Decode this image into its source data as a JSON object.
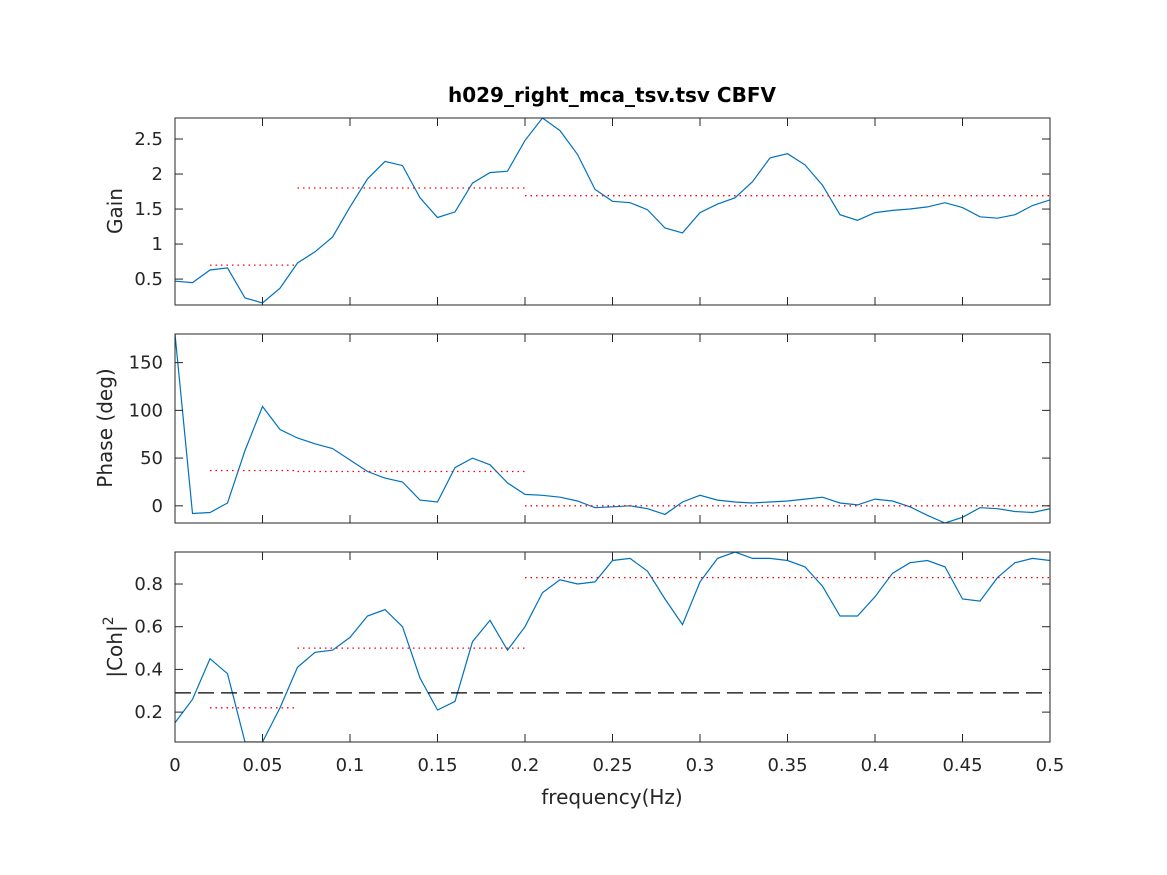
{
  "figure": {
    "title": "h029_right_mca_tsv.tsv CBFV",
    "xlabel": "frequency(Hz)"
  },
  "colors": {
    "line": "#0072BD",
    "band_mean": "#FF0000",
    "threshold": "#000000",
    "axes": "#262626"
  },
  "chart_data": [
    {
      "type": "line",
      "title": "h029_right_mca_tsv.tsv CBFV",
      "xlabel": "",
      "ylabel": "Gain",
      "xlim": [
        0,
        0.5
      ],
      "ylim": [
        0.13,
        2.8
      ],
      "xticks": [
        0,
        0.05,
        0.1,
        0.15,
        0.2,
        0.25,
        0.3,
        0.35,
        0.4,
        0.45,
        0.5
      ],
      "yticks": [
        0.5,
        1,
        1.5,
        2,
        2.5
      ],
      "ytick_labels": [
        "0.5",
        "1",
        "1.5",
        "2",
        "2.5"
      ],
      "grid": false,
      "series": [
        {
          "style": "solid",
          "x": [
            0,
            0.01,
            0.02,
            0.03,
            0.04,
            0.05,
            0.06,
            0.07,
            0.08,
            0.09,
            0.1,
            0.11,
            0.12,
            0.13,
            0.14,
            0.15,
            0.16,
            0.17,
            0.18,
            0.19,
            0.2,
            0.21,
            0.22,
            0.23,
            0.24,
            0.25,
            0.26,
            0.27,
            0.28,
            0.29,
            0.3,
            0.31,
            0.32,
            0.33,
            0.34,
            0.35,
            0.36,
            0.37,
            0.38,
            0.39,
            0.4,
            0.41,
            0.42,
            0.43,
            0.44,
            0.45,
            0.46,
            0.47,
            0.48,
            0.49,
            0.5
          ],
          "y": [
            0.47,
            0.45,
            0.63,
            0.66,
            0.23,
            0.16,
            0.37,
            0.73,
            0.89,
            1.1,
            1.53,
            1.93,
            2.18,
            2.12,
            1.66,
            1.38,
            1.46,
            1.87,
            2.02,
            2.04,
            2.48,
            2.8,
            2.62,
            2.28,
            1.78,
            1.61,
            1.59,
            1.49,
            1.23,
            1.16,
            1.45,
            1.57,
            1.66,
            1.89,
            2.23,
            2.29,
            2.13,
            1.84,
            1.42,
            1.34,
            1.45,
            1.48,
            1.5,
            1.53,
            1.59,
            1.52,
            1.39,
            1.37,
            1.42,
            1.55,
            1.63
          ]
        },
        {
          "style": "dotted",
          "x": [
            0.02,
            0.07
          ],
          "y": [
            0.7,
            0.7
          ]
        },
        {
          "style": "dotted",
          "x": [
            0.07,
            0.2
          ],
          "y": [
            1.8,
            1.8
          ]
        },
        {
          "style": "dotted",
          "x": [
            0.2,
            0.5
          ],
          "y": [
            1.69,
            1.69
          ]
        }
      ]
    },
    {
      "type": "line",
      "title": "",
      "xlabel": "",
      "ylabel": "Phase (deg)",
      "xlim": [
        0,
        0.5
      ],
      "ylim": [
        -18,
        180
      ],
      "xticks": [
        0,
        0.05,
        0.1,
        0.15,
        0.2,
        0.25,
        0.3,
        0.35,
        0.4,
        0.45,
        0.5
      ],
      "yticks": [
        0,
        50,
        100,
        150
      ],
      "ytick_labels": [
        "0",
        "50",
        "100",
        "150"
      ],
      "grid": false,
      "series": [
        {
          "style": "solid",
          "x": [
            0,
            0.01,
            0.02,
            0.03,
            0.04,
            0.05,
            0.06,
            0.07,
            0.08,
            0.09,
            0.1,
            0.11,
            0.12,
            0.13,
            0.14,
            0.15,
            0.16,
            0.17,
            0.18,
            0.19,
            0.2,
            0.21,
            0.22,
            0.23,
            0.24,
            0.25,
            0.26,
            0.27,
            0.28,
            0.29,
            0.3,
            0.31,
            0.32,
            0.33,
            0.34,
            0.35,
            0.36,
            0.37,
            0.38,
            0.39,
            0.4,
            0.41,
            0.42,
            0.43,
            0.44,
            0.45,
            0.46,
            0.47,
            0.48,
            0.49,
            0.5
          ],
          "y": [
            180,
            -8,
            -7,
            3,
            58,
            104,
            80,
            71,
            65,
            60,
            48,
            36,
            29,
            25,
            6,
            4,
            40,
            50,
            43,
            24,
            12,
            11,
            9,
            5,
            -2,
            -1,
            0,
            -3,
            -9,
            4,
            11,
            6,
            4,
            3,
            4,
            5,
            7,
            9,
            3,
            1,
            7,
            5,
            -1,
            -10,
            -18,
            -12,
            -2,
            -3,
            -6,
            -7,
            -3
          ]
        },
        {
          "style": "dotted",
          "x": [
            0.02,
            0.07
          ],
          "y": [
            37,
            37
          ]
        },
        {
          "style": "dotted",
          "x": [
            0.07,
            0.2
          ],
          "y": [
            36,
            36
          ]
        },
        {
          "style": "dotted",
          "x": [
            0.2,
            0.5
          ],
          "y": [
            0,
            0
          ]
        }
      ]
    },
    {
      "type": "line",
      "title": "",
      "xlabel": "frequency(Hz)",
      "ylabel": "|Coh|",
      "ylabel_superscript": "2",
      "xlim": [
        0,
        0.5
      ],
      "ylim": [
        0.06,
        0.95
      ],
      "xticks": [
        0,
        0.05,
        0.1,
        0.15,
        0.2,
        0.25,
        0.3,
        0.35,
        0.4,
        0.45,
        0.5
      ],
      "xtick_labels": [
        "0",
        "0.05",
        "0.1",
        "0.15",
        "0.2",
        "0.25",
        "0.3",
        "0.35",
        "0.4",
        "0.45",
        "0.5"
      ],
      "yticks": [
        0.2,
        0.4,
        0.6,
        0.8
      ],
      "ytick_labels": [
        "0.2",
        "0.4",
        "0.6",
        "0.8"
      ],
      "grid": false,
      "series": [
        {
          "style": "solid",
          "x": [
            0,
            0.01,
            0.02,
            0.03,
            0.04,
            0.05,
            0.06,
            0.07,
            0.08,
            0.09,
            0.1,
            0.11,
            0.12,
            0.13,
            0.14,
            0.15,
            0.16,
            0.17,
            0.18,
            0.19,
            0.2,
            0.21,
            0.22,
            0.23,
            0.24,
            0.25,
            0.26,
            0.27,
            0.28,
            0.29,
            0.3,
            0.31,
            0.32,
            0.33,
            0.34,
            0.35,
            0.36,
            0.37,
            0.38,
            0.39,
            0.4,
            0.41,
            0.42,
            0.43,
            0.44,
            0.45,
            0.46,
            0.47,
            0.48,
            0.49,
            0.5
          ],
          "y": [
            0.15,
            0.26,
            0.45,
            0.38,
            0.06,
            0.06,
            0.22,
            0.41,
            0.48,
            0.49,
            0.55,
            0.65,
            0.68,
            0.6,
            0.36,
            0.21,
            0.25,
            0.53,
            0.63,
            0.49,
            0.6,
            0.76,
            0.82,
            0.8,
            0.81,
            0.91,
            0.92,
            0.86,
            0.73,
            0.61,
            0.81,
            0.92,
            0.95,
            0.92,
            0.92,
            0.91,
            0.88,
            0.79,
            0.65,
            0.65,
            0.74,
            0.85,
            0.9,
            0.91,
            0.88,
            0.73,
            0.72,
            0.83,
            0.9,
            0.92,
            0.91
          ]
        },
        {
          "style": "dotted",
          "x": [
            0.02,
            0.07
          ],
          "y": [
            0.22,
            0.22
          ]
        },
        {
          "style": "dotted",
          "x": [
            0.07,
            0.2
          ],
          "y": [
            0.5,
            0.5
          ]
        },
        {
          "style": "dotted",
          "x": [
            0.2,
            0.5
          ],
          "y": [
            0.83,
            0.83
          ]
        },
        {
          "style": "dashed",
          "x": [
            0,
            0.5
          ],
          "y": [
            0.29,
            0.29
          ]
        }
      ]
    }
  ]
}
